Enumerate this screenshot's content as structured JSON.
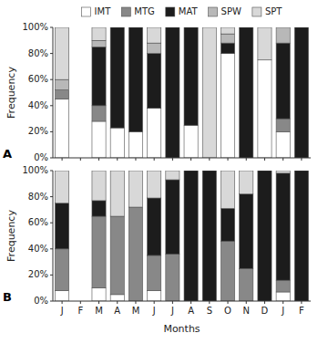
{
  "chart_data": [
    {
      "type": "bar",
      "stacked": true,
      "title": "A",
      "y_label": "Frequency",
      "categories": [
        "J",
        "F",
        "M",
        "A",
        "M",
        "J",
        "J",
        "A",
        "S",
        "O",
        "N",
        "D",
        "J",
        "F"
      ],
      "series": [
        {
          "name": "IMT",
          "color": "#ffffff",
          "values": [
            45,
            0,
            28,
            23,
            20,
            38,
            0,
            25,
            0,
            80,
            0,
            75,
            20,
            0
          ]
        },
        {
          "name": "MTG",
          "color": "#888888",
          "values": [
            7,
            0,
            12,
            0,
            0,
            0,
            0,
            0,
            0,
            0,
            0,
            0,
            10,
            0
          ]
        },
        {
          "name": "MAT",
          "color": "#1c1c1c",
          "values": [
            0,
            0,
            45,
            77,
            80,
            42,
            100,
            75,
            0,
            8,
            100,
            0,
            58,
            100
          ]
        },
        {
          "name": "SPW",
          "color": "#b8b8b8",
          "values": [
            8,
            0,
            5,
            0,
            0,
            8,
            0,
            0,
            0,
            7,
            0,
            0,
            12,
            0
          ]
        },
        {
          "name": "SPT",
          "color": "#d8d8d8",
          "values": [
            40,
            0,
            10,
            0,
            0,
            12,
            0,
            0,
            100,
            5,
            0,
            25,
            0,
            0
          ]
        }
      ],
      "ylim": [
        0,
        100
      ],
      "yticks": [
        {
          "value": 0,
          "label": "0%"
        },
        {
          "value": 20,
          "label": "20%"
        },
        {
          "value": 40,
          "label": "40%"
        },
        {
          "value": 60,
          "label": "60%"
        },
        {
          "value": 80,
          "label": "80%"
        },
        {
          "value": 100,
          "label": "100%"
        }
      ],
      "grid": false,
      "legend": "top",
      "tick_labels": "y"
    },
    {
      "type": "bar",
      "stacked": true,
      "title": "B",
      "y_label": "Frequency",
      "x_label": "Months",
      "categories": [
        "J",
        "F",
        "M",
        "A",
        "M",
        "J",
        "J",
        "A",
        "S",
        "O",
        "N",
        "D",
        "J",
        "F"
      ],
      "series": [
        {
          "name": "IMT",
          "color": "#ffffff",
          "values": [
            8,
            0,
            10,
            5,
            0,
            8,
            0,
            0,
            0,
            0,
            0,
            0,
            7,
            0
          ]
        },
        {
          "name": "MTG",
          "color": "#888888",
          "values": [
            32,
            0,
            55,
            60,
            72,
            27,
            36,
            0,
            0,
            46,
            25,
            0,
            9,
            0
          ]
        },
        {
          "name": "MAT",
          "color": "#1c1c1c",
          "values": [
            35,
            0,
            12,
            0,
            0,
            44,
            57,
            100,
            100,
            25,
            57,
            100,
            82,
            100
          ]
        },
        {
          "name": "SPW",
          "color": "#b8b8b8",
          "values": [
            0,
            0,
            0,
            0,
            0,
            0,
            0,
            0,
            0,
            0,
            0,
            0,
            0,
            0
          ]
        },
        {
          "name": "SPT",
          "color": "#d8d8d8",
          "values": [
            25,
            0,
            23,
            35,
            28,
            21,
            7,
            0,
            0,
            29,
            18,
            0,
            2,
            0
          ]
        }
      ],
      "ylim": [
        0,
        100
      ],
      "yticks": [
        {
          "value": 0,
          "label": "0%"
        },
        {
          "value": 20,
          "label": "20%"
        },
        {
          "value": 40,
          "label": "40%"
        },
        {
          "value": 60,
          "label": "60%"
        },
        {
          "value": 80,
          "label": "80%"
        },
        {
          "value": 100,
          "label": "100%"
        }
      ],
      "grid": false,
      "tick_labels": true
    }
  ]
}
